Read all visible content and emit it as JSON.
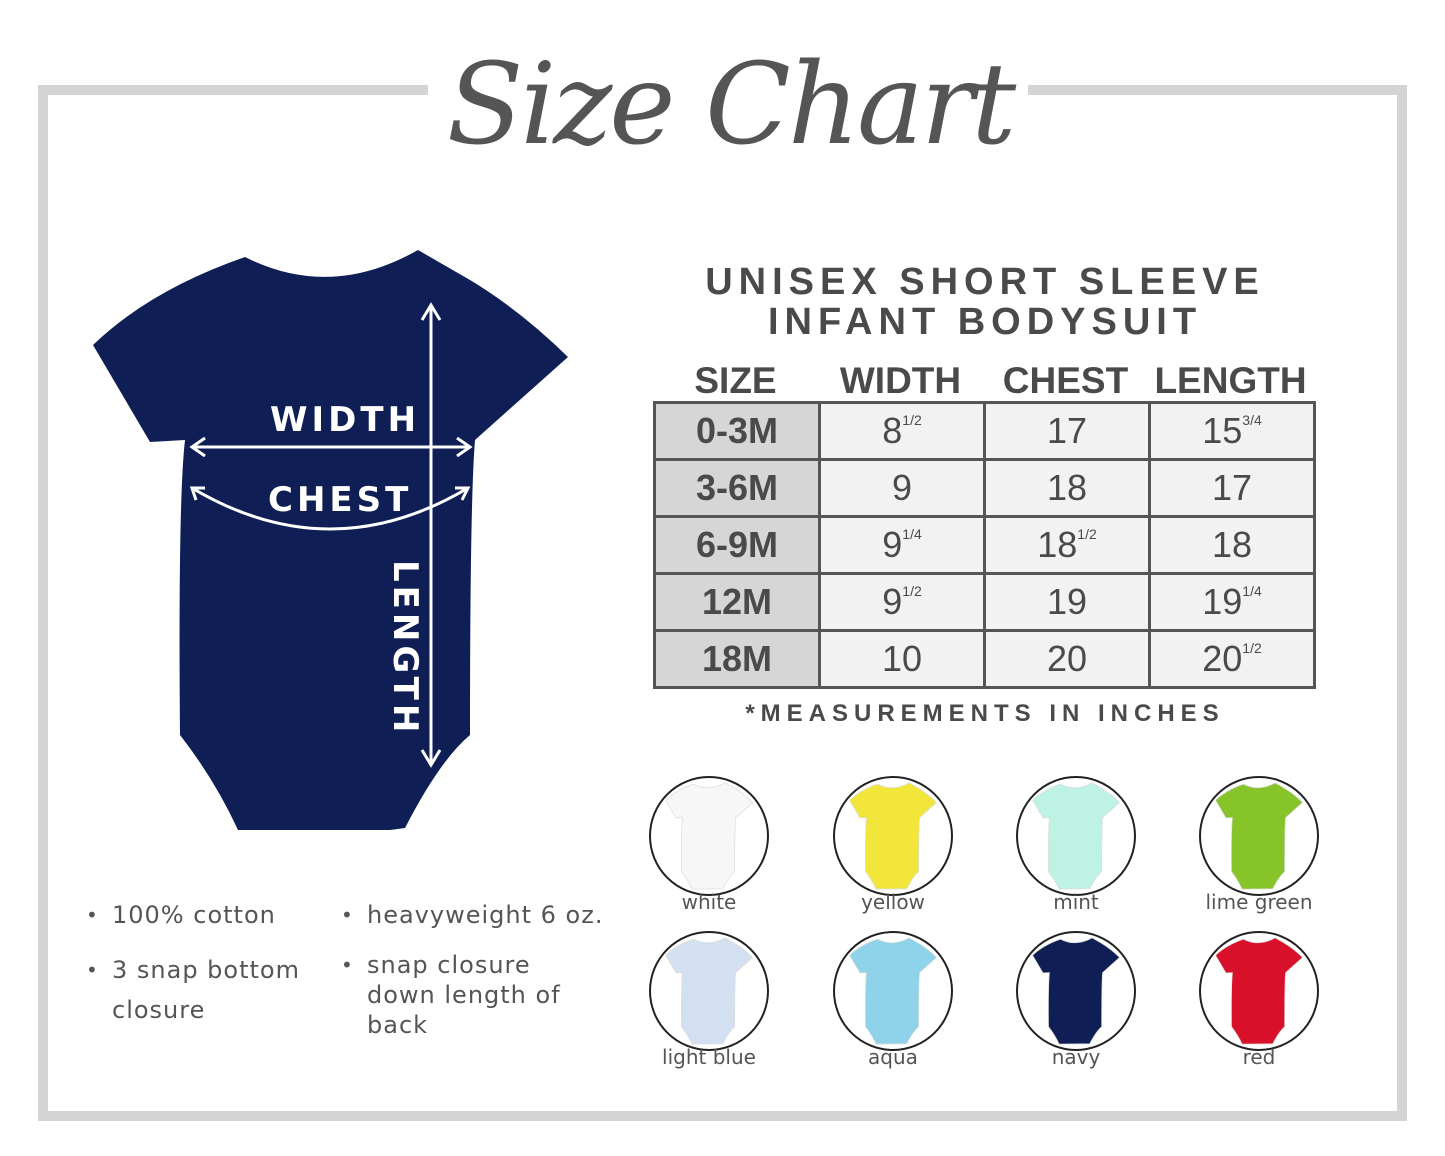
{
  "title": "Size Chart",
  "product": {
    "line1": "UNISEX SHORT SLEEVE",
    "line2": "INFANT BODYSUIT"
  },
  "diagram": {
    "width_label": "WIDTH",
    "chest_label": "CHEST",
    "length_label": "LENGTH",
    "garment_color": "#0f1f55"
  },
  "table": {
    "headers": [
      "SIZE",
      "WIDTH",
      "CHEST",
      "LENGTH"
    ],
    "rows": [
      {
        "size": "0-3M",
        "width": {
          "whole": "8",
          "frac": "1/2"
        },
        "chest": {
          "whole": "17",
          "frac": ""
        },
        "length": {
          "whole": "15",
          "frac": "3/4"
        }
      },
      {
        "size": "3-6M",
        "width": {
          "whole": "9",
          "frac": ""
        },
        "chest": {
          "whole": "18",
          "frac": ""
        },
        "length": {
          "whole": "17",
          "frac": ""
        }
      },
      {
        "size": "6-9M",
        "width": {
          "whole": "9",
          "frac": "1/4"
        },
        "chest": {
          "whole": "18",
          "frac": "1/2"
        },
        "length": {
          "whole": "18",
          "frac": ""
        }
      },
      {
        "size": "12M",
        "width": {
          "whole": "9",
          "frac": "1/2"
        },
        "chest": {
          "whole": "19",
          "frac": ""
        },
        "length": {
          "whole": "19",
          "frac": "1/4"
        }
      },
      {
        "size": "18M",
        "width": {
          "whole": "10",
          "frac": ""
        },
        "chest": {
          "whole": "20",
          "frac": ""
        },
        "length": {
          "whole": "20",
          "frac": "1/2"
        }
      }
    ]
  },
  "note": "*MEASUREMENTS IN INCHES",
  "features": [
    "100% cotton",
    "heavyweight 6 oz.",
    "3 snap bottom closure",
    "snap closure down length of back"
  ],
  "colors": [
    {
      "name": "white",
      "hex": "#f7f7f7"
    },
    {
      "name": "yellow",
      "hex": "#f2e63a"
    },
    {
      "name": "mint",
      "hex": "#bdf2e4"
    },
    {
      "name": "lime green",
      "hex": "#86c42a"
    },
    {
      "name": "light blue",
      "hex": "#d3e0f2"
    },
    {
      "name": "aqua",
      "hex": "#8fd3ea"
    },
    {
      "name": "navy",
      "hex": "#0f1f55"
    },
    {
      "name": "red",
      "hex": "#d9102a"
    }
  ]
}
